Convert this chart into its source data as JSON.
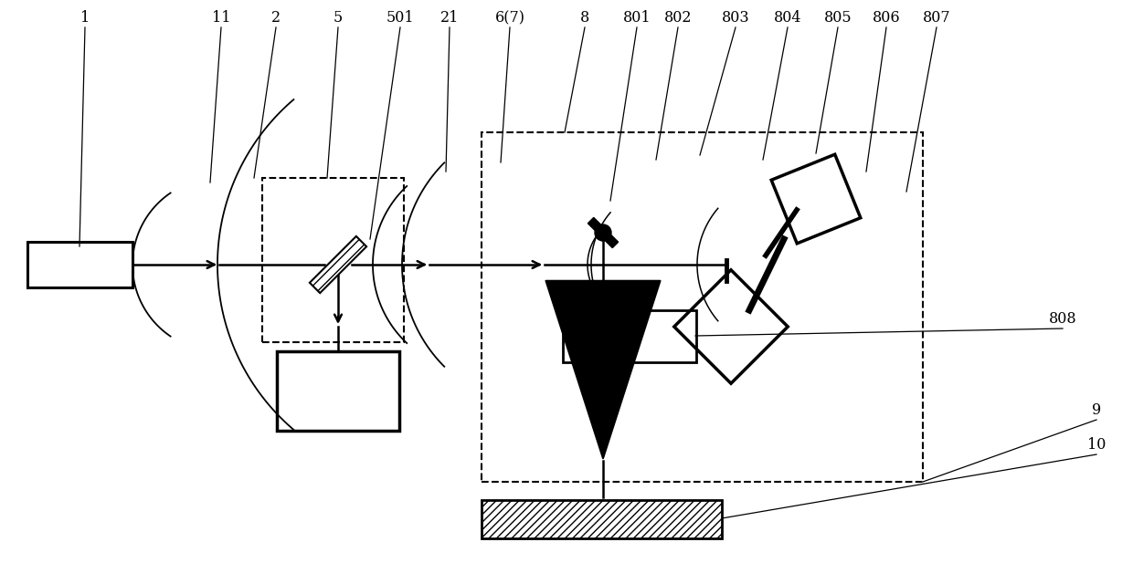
{
  "bg_color": "#ffffff",
  "lc": "#000000",
  "fig_w": 12.4,
  "fig_h": 6.4,
  "dpi": 100,
  "labels": [
    [
      "1",
      93,
      28,
      87,
      270
    ],
    [
      "11",
      242,
      28,
      230,
      200
    ],
    [
      "2",
      302,
      28,
      278,
      195
    ],
    [
      "5",
      370,
      28,
      358,
      195
    ],
    [
      "501",
      438,
      28,
      405,
      262
    ],
    [
      "21",
      492,
      28,
      488,
      188
    ],
    [
      "6(7)",
      558,
      28,
      548,
      178
    ],
    [
      "8",
      640,
      28,
      618,
      145
    ],
    [
      "801",
      697,
      28,
      668,
      220
    ],
    [
      "802",
      742,
      28,
      718,
      175
    ],
    [
      "803",
      805,
      28,
      766,
      170
    ],
    [
      "804",
      862,
      28,
      835,
      175
    ],
    [
      "805",
      917,
      28,
      893,
      168
    ],
    [
      "806",
      970,
      28,
      948,
      188
    ],
    [
      "807",
      1025,
      28,
      992,
      210
    ],
    [
      "808",
      1163,
      358,
      761,
      368
    ],
    [
      "9",
      1200,
      458,
      1010,
      528
    ],
    [
      "10",
      1200,
      496,
      790,
      568
    ]
  ]
}
